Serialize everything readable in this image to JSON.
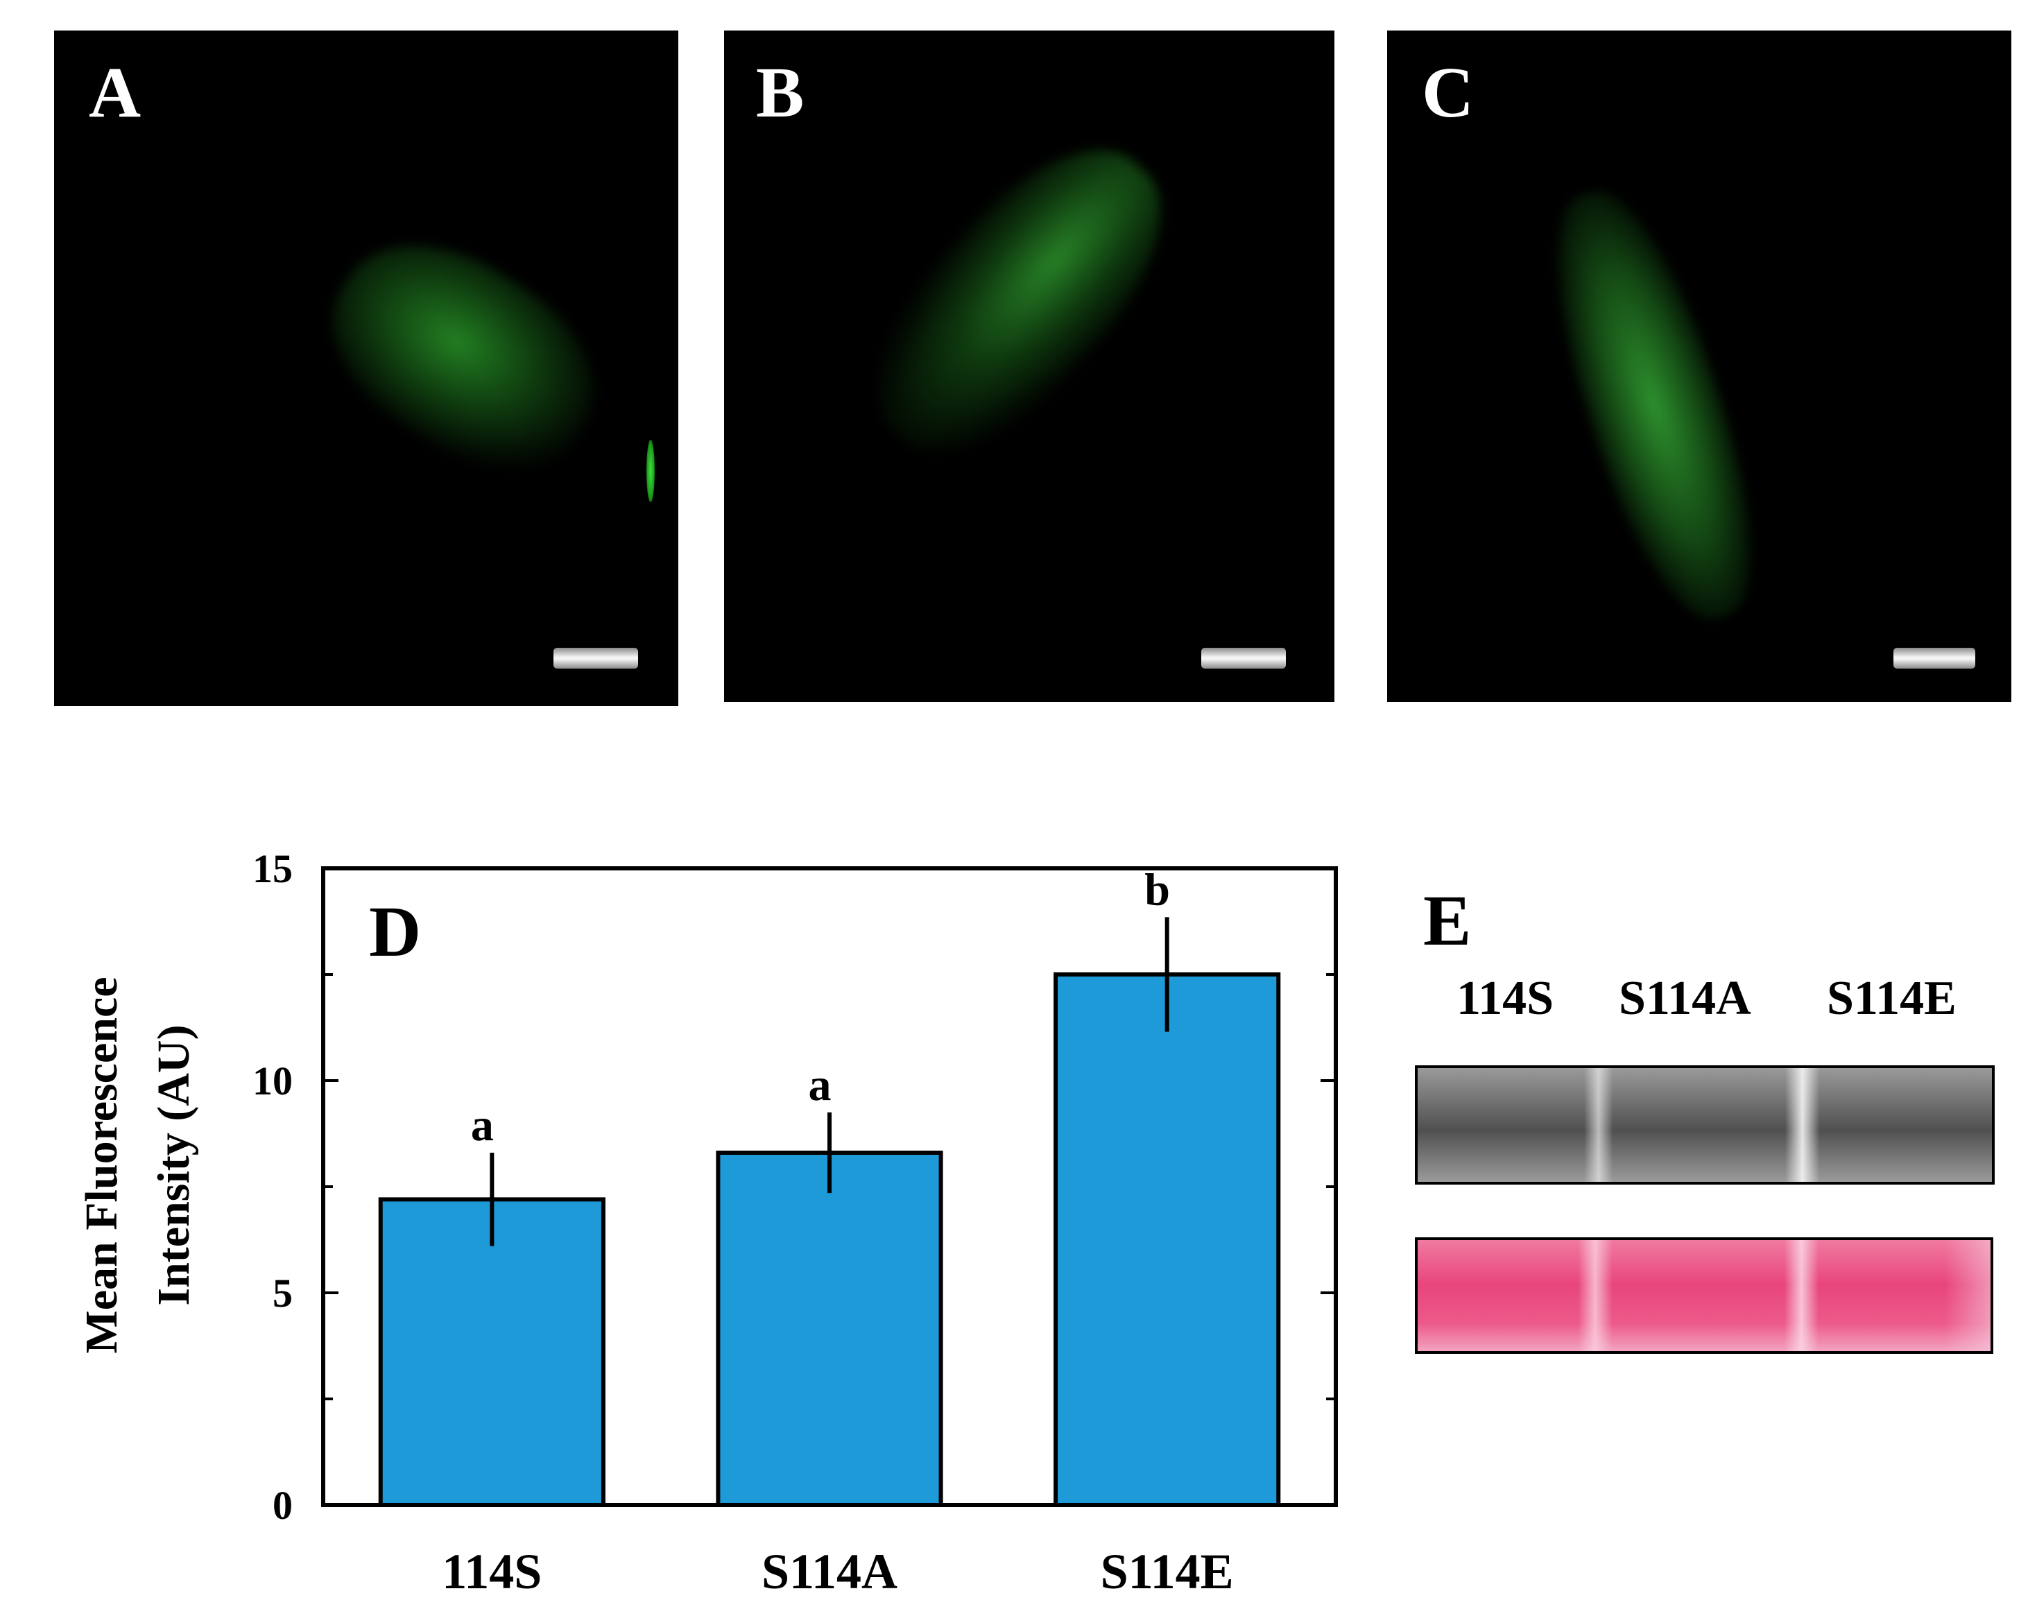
{
  "panels": {
    "a_label": "A",
    "b_label": "B",
    "c_label": "C"
  },
  "chart_data": {
    "type": "bar",
    "panel_label": "D",
    "categories": [
      "114S",
      "S114A",
      "S114E"
    ],
    "values": [
      7.2,
      8.3,
      12.5
    ],
    "errors": [
      1.1,
      0.95,
      1.35
    ],
    "significance": [
      "a",
      "a",
      "b"
    ],
    "ylabel_line1": "Mean Fluorescence",
    "ylabel_line2": "Intensity (AU)",
    "ylim": [
      0,
      15
    ],
    "yticks": [
      0,
      5,
      10,
      15
    ],
    "bar_color": "#1e9ad8",
    "grid": false
  },
  "blot": {
    "panel_label": "E",
    "lanes": [
      "114S",
      "S114A",
      "S114E"
    ],
    "western_color": "#5a5a5a",
    "ponceau_color": "#e94b7f"
  }
}
